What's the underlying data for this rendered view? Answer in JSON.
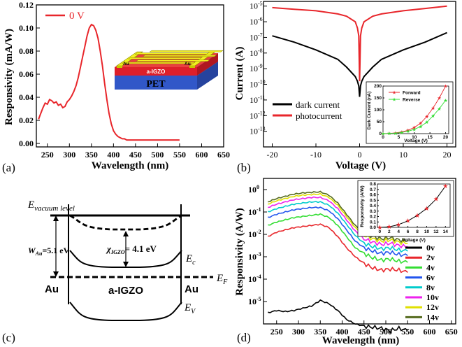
{
  "panels": {
    "a": "(a)",
    "b": "(b)",
    "c": "(c)",
    "d": "(d)"
  },
  "colors": {
    "red": "#e8262b",
    "black": "#000000",
    "green": "#33dd33"
  },
  "chart_data": [
    {
      "id": "a",
      "type": "line",
      "xlabel": "Wavelength (nm)",
      "ylabel": "Responsivity (mA/W)",
      "xlim": [
        225,
        650
      ],
      "ylim": [
        -0.003,
        0.12
      ],
      "xticks": [
        250,
        300,
        350,
        400,
        450,
        500,
        550,
        600,
        650
      ],
      "yticks": [
        0.0,
        0.02,
        0.04,
        0.06,
        0.08,
        0.1,
        0.12
      ],
      "ytick_labels": [
        "0.00",
        "0.02",
        "0.04",
        "0.06",
        "0.08",
        "0.10",
        "0.12"
      ],
      "legend": "0 V",
      "inset_labels": {
        "substrate": "PET",
        "layer": "a-IGZO",
        "left": "Au",
        "right": "Au"
      },
      "series": [
        {
          "name": "0 V",
          "color": "#e8262b",
          "x": [
            230,
            235,
            240,
            245,
            250,
            255,
            260,
            265,
            270,
            275,
            280,
            285,
            290,
            295,
            300,
            305,
            310,
            315,
            320,
            325,
            330,
            335,
            340,
            345,
            350,
            355,
            360,
            365,
            370,
            375,
            380,
            385,
            390,
            395,
            400,
            405,
            410,
            415,
            420,
            425,
            430,
            440,
            450,
            460,
            470,
            480,
            490,
            500,
            510,
            520,
            530,
            540,
            550
          ],
          "y": [
            0.021,
            0.026,
            0.031,
            0.035,
            0.034,
            0.038,
            0.037,
            0.035,
            0.036,
            0.033,
            0.034,
            0.031,
            0.032,
            0.036,
            0.038,
            0.041,
            0.045,
            0.05,
            0.057,
            0.066,
            0.075,
            0.084,
            0.093,
            0.1,
            0.103,
            0.102,
            0.098,
            0.091,
            0.08,
            0.067,
            0.052,
            0.038,
            0.026,
            0.017,
            0.011,
            0.008,
            0.006,
            0.005,
            0.004,
            0.004,
            0.003,
            0.003,
            0.003,
            0.003,
            0.003,
            0.003,
            0.003,
            0.003,
            0.003,
            0.003,
            0.003,
            0.003,
            0.003
          ]
        }
      ]
    },
    {
      "id": "b",
      "type": "line",
      "yscale": "log",
      "xlabel": "Voltage (V)",
      "ylabel": "Current (A)",
      "xlim": [
        -22,
        22
      ],
      "ylim_exp": [
        -14,
        -4.7
      ],
      "xticks": [
        -20,
        -10,
        0,
        10,
        20
      ],
      "ytick_exp": [
        -13,
        -12,
        -11,
        -10,
        -9,
        -8,
        -7,
        -6,
        -5
      ],
      "series": [
        {
          "name": "dark current",
          "color": "#000000",
          "x": [
            -20,
            -15,
            -10,
            -5,
            -3,
            -1,
            -0.5,
            -0.2,
            0,
            0.2,
            0.5,
            1,
            3,
            5,
            10,
            15,
            20
          ],
          "log10y": [
            -6.9,
            -7.3,
            -7.8,
            -8.4,
            -8.9,
            -9.5,
            -9.8,
            -10.1,
            -10.8,
            -10.1,
            -9.8,
            -9.5,
            -8.9,
            -8.4,
            -7.8,
            -7.3,
            -6.7
          ]
        },
        {
          "name": "photocurrent",
          "color": "#e8262b",
          "x": [
            -20,
            -15,
            -10,
            -5,
            -3,
            -1,
            -0.5,
            -0.2,
            0,
            0.2,
            0.5,
            1,
            3,
            5,
            10,
            15,
            20
          ],
          "log10y": [
            -5.1,
            -5.2,
            -5.3,
            -5.5,
            -5.65,
            -6.0,
            -6.4,
            -6.9,
            -9.8,
            -6.9,
            -6.4,
            -6.0,
            -5.65,
            -5.5,
            -5.3,
            -5.15,
            -5.0
          ]
        }
      ],
      "inset": {
        "xlabel": "Voltage (V)",
        "ylabel": "Dark Current (nA)",
        "xticks": [
          0,
          5,
          10,
          15,
          20
        ],
        "yticks": [
          0,
          50,
          100,
          150,
          200
        ],
        "ylim": [
          0,
          200
        ],
        "series": [
          {
            "name": "Forward",
            "color": "#e8262b",
            "x": [
              0,
              2,
              4,
              6,
              8,
              10,
              12,
              14,
              16,
              18,
              20
            ],
            "y": [
              0,
              1,
              3,
              7,
              14,
              26,
              44,
              72,
              108,
              150,
              200
            ]
          },
          {
            "name": "Reverse",
            "color": "#33dd33",
            "x": [
              0,
              2,
              4,
              6,
              8,
              10,
              12,
              14,
              16,
              18,
              20
            ],
            "y": [
              0,
              1,
              2,
              5,
              10,
              18,
              30,
              48,
              75,
              105,
              140
            ]
          }
        ]
      }
    },
    {
      "id": "c",
      "type": "diagram",
      "labels": {
        "evac": "E",
        "evac_sub": "vacuum level",
        "wau": "W",
        "wau_sub": "Au",
        "wau_val": "=5.1 eV",
        "chi": "χ",
        "chi_sub": "IGZO",
        "chi_val": "= 4.1 eV",
        "ec": "E",
        "ec_sub": "c",
        "ef": "E",
        "ef_sub": "F",
        "ev": "E",
        "ev_sub": "V",
        "au_left": "Au",
        "au_right": "Au",
        "center": "a-IGZO"
      }
    },
    {
      "id": "d",
      "type": "line",
      "yscale": "log",
      "xlabel": "Wavelength (nm)",
      "ylabel": "Responsivity (A/W)",
      "xlim": [
        220,
        660
      ],
      "ylim_exp": [
        -6,
        0.5
      ],
      "xticks": [
        250,
        300,
        350,
        400,
        450,
        500,
        550,
        600,
        650
      ],
      "ytick_exp": [
        -5,
        -4,
        -3,
        -2,
        -1,
        0
      ],
      "x": [
        230,
        250,
        270,
        290,
        310,
        330,
        350,
        370,
        390,
        410,
        430,
        450,
        470,
        490,
        510,
        530,
        550
      ],
      "series": [
        {
          "name": "0v",
          "color": "#000000",
          "log10y": [
            -5.5,
            -5.4,
            -5.45,
            -5.4,
            -5.3,
            -5.2,
            -4.95,
            -5.1,
            -5.4,
            -5.8,
            -6.0,
            -6.1,
            -6.15,
            -6.2,
            -6.3,
            -6.2,
            -6.3
          ]
        },
        {
          "name": "2v",
          "color": "#e8262b",
          "log10y": [
            -2.1,
            -1.9,
            -1.8,
            -1.7,
            -1.65,
            -1.6,
            -1.55,
            -1.7,
            -2.1,
            -2.6,
            -3.0,
            -3.3,
            -3.5,
            -3.6,
            -3.55,
            -3.6,
            -3.7
          ]
        },
        {
          "name": "4v",
          "color": "#33dd33",
          "log10y": [
            -1.6,
            -1.45,
            -1.35,
            -1.25,
            -1.2,
            -1.15,
            -1.1,
            -1.25,
            -1.6,
            -2.1,
            -2.6,
            -2.85,
            -3.05,
            -3.15,
            -3.1,
            -3.2,
            -3.25
          ]
        },
        {
          "name": "6v",
          "color": "#2255ee",
          "log10y": [
            -1.25,
            -1.1,
            -1.0,
            -0.9,
            -0.85,
            -0.8,
            -0.8,
            -0.95,
            -1.3,
            -1.8,
            -2.3,
            -2.6,
            -2.75,
            -2.85,
            -2.8,
            -2.9,
            -2.95
          ]
        },
        {
          "name": "8v",
          "color": "#00cccc",
          "log10y": [
            -1.0,
            -0.85,
            -0.75,
            -0.65,
            -0.6,
            -0.55,
            -0.55,
            -0.7,
            -1.05,
            -1.55,
            -2.05,
            -2.4,
            -2.55,
            -2.65,
            -2.6,
            -2.7,
            -2.75
          ]
        },
        {
          "name": "10v",
          "color": "#ee22ee",
          "log10y": [
            -0.8,
            -0.65,
            -0.55,
            -0.45,
            -0.4,
            -0.35,
            -0.35,
            -0.5,
            -0.85,
            -1.35,
            -1.85,
            -2.2,
            -2.35,
            -2.45,
            -2.4,
            -2.5,
            -2.55
          ]
        },
        {
          "name": "12v",
          "color": "#e0e000",
          "log10y": [
            -0.65,
            -0.5,
            -0.4,
            -0.3,
            -0.25,
            -0.22,
            -0.2,
            -0.35,
            -0.7,
            -1.2,
            -1.7,
            -2.05,
            -2.2,
            -2.3,
            -2.25,
            -2.35,
            -2.4
          ]
        },
        {
          "name": "14v",
          "color": "#556b1e",
          "log10y": [
            -0.55,
            -0.4,
            -0.3,
            -0.2,
            -0.15,
            -0.12,
            -0.1,
            -0.25,
            -0.6,
            -1.1,
            -1.6,
            -1.95,
            -2.1,
            -2.2,
            -2.15,
            -2.25,
            -2.3
          ]
        }
      ],
      "inset": {
        "xlabel": "Voltage (V)",
        "ylabel": "Responsivity (A/W)",
        "xticks": [
          0,
          2,
          4,
          6,
          8,
          10,
          12,
          14
        ],
        "yticks": [
          0.0,
          0.1,
          0.2,
          0.3,
          0.4,
          0.5,
          0.6,
          0.7,
          0.8
        ],
        "ytick_labels": [
          "0.0",
          "0.1",
          "0.2",
          "0.3",
          "0.4",
          "0.5",
          "0.6",
          "0.7",
          "0.8"
        ],
        "ylim": [
          0,
          0.8
        ],
        "x": [
          0,
          2,
          4,
          6,
          8,
          10,
          12,
          14
        ],
        "y": [
          0.0,
          0.01,
          0.05,
          0.12,
          0.22,
          0.35,
          0.52,
          0.76
        ]
      }
    }
  ]
}
